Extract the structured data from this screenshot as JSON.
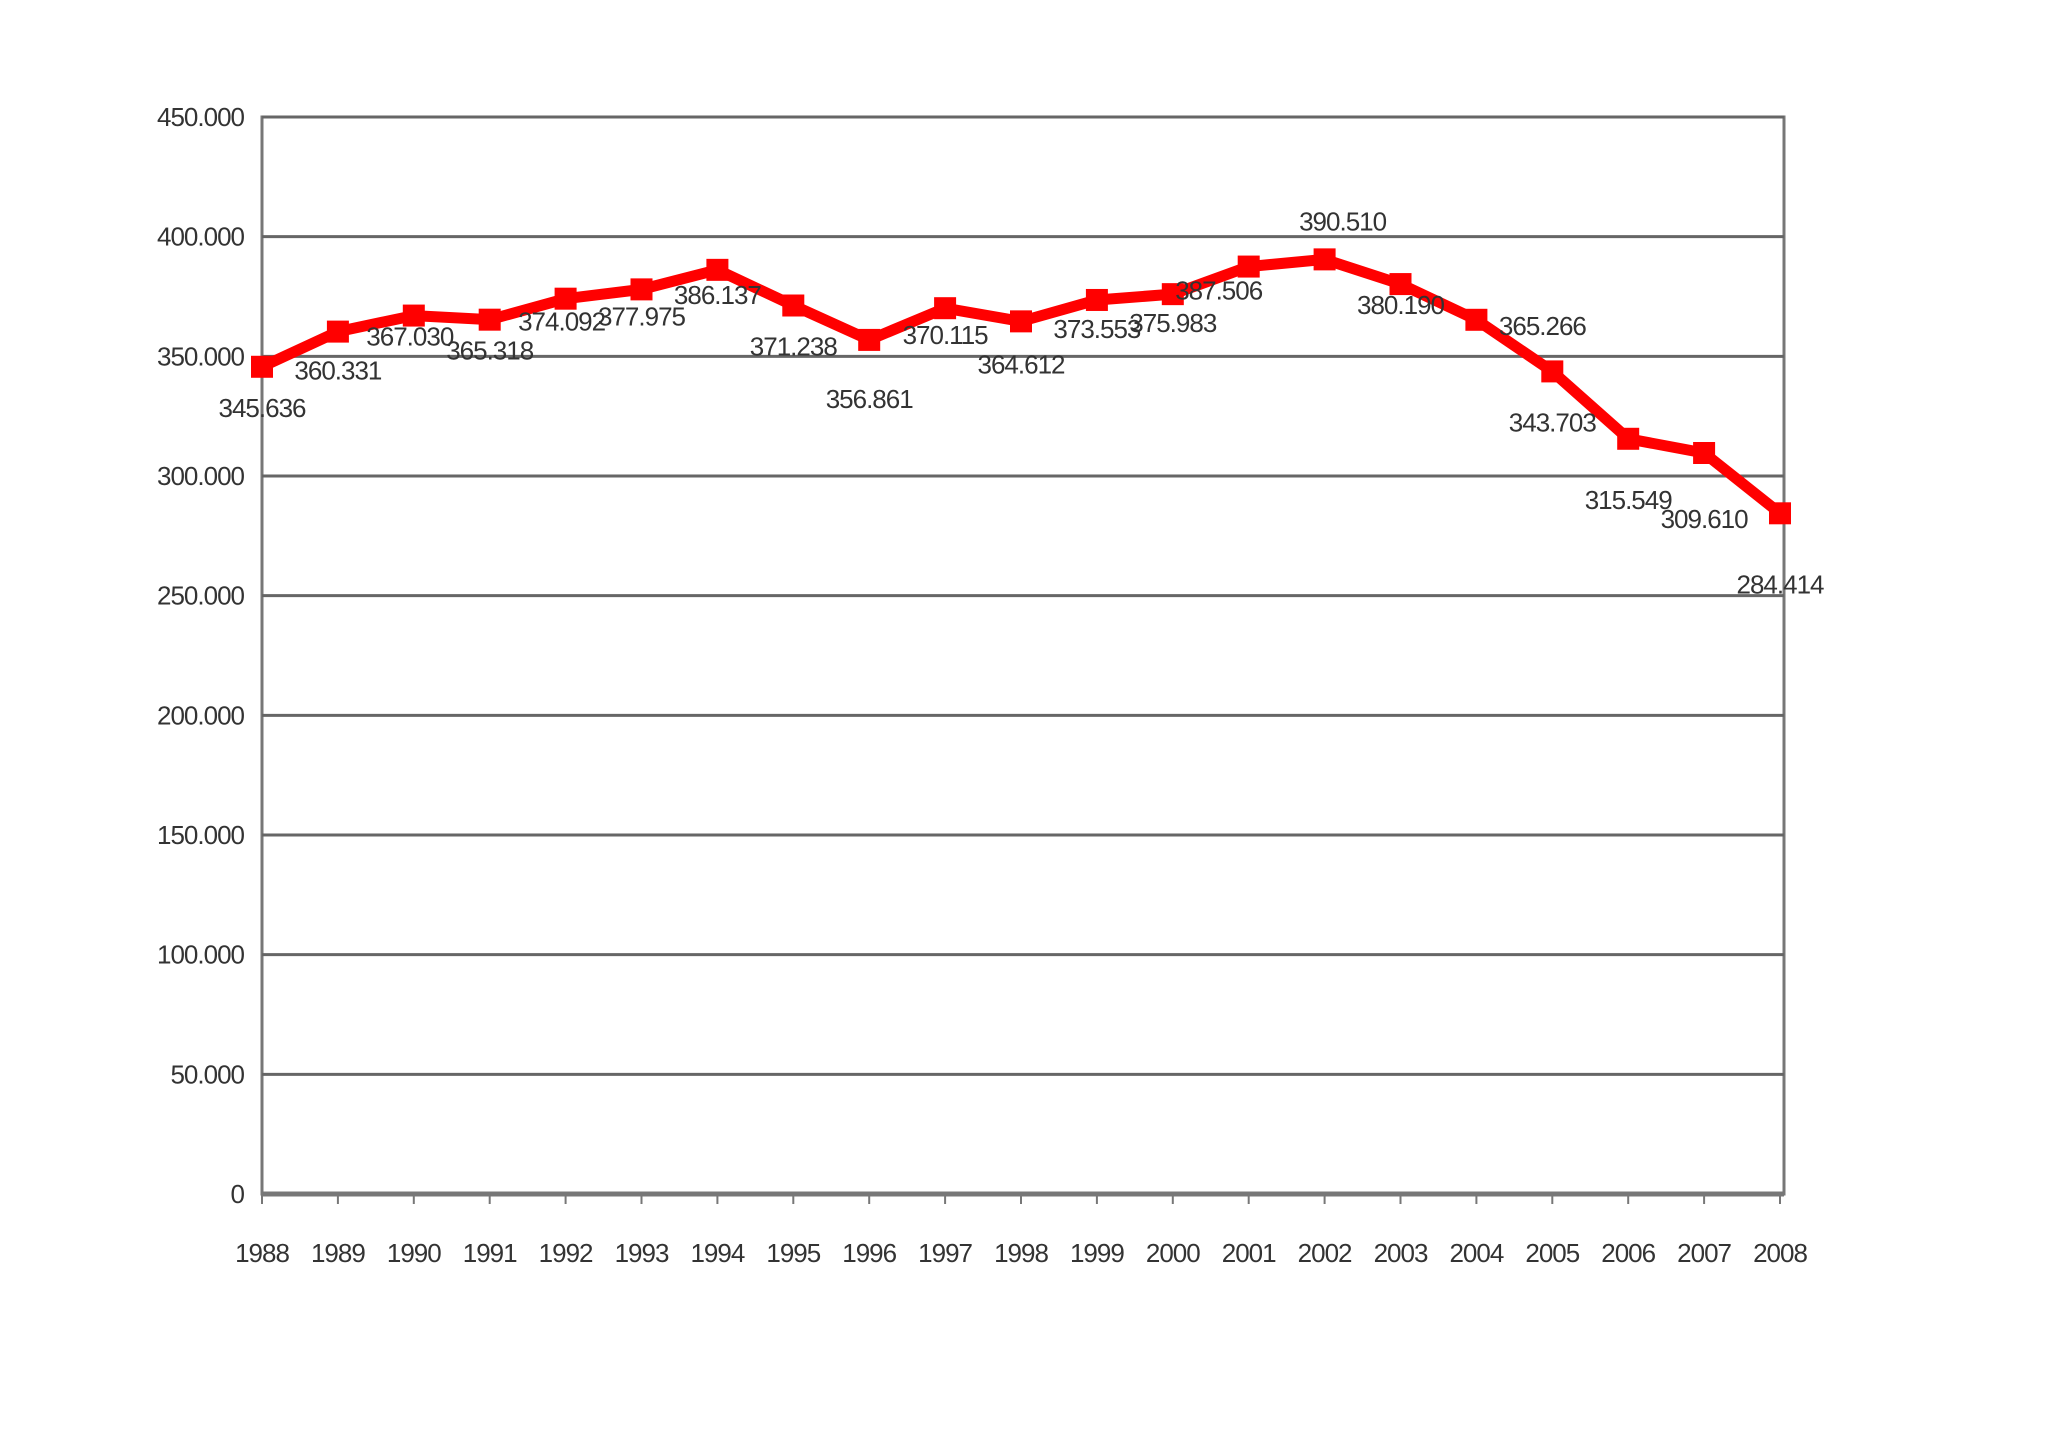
{
  "chart_data": {
    "type": "line",
    "title": "",
    "xlabel": "",
    "ylabel": "",
    "categories": [
      "1988",
      "1989",
      "1990",
      "1991",
      "1992",
      "1993",
      "1994",
      "1995",
      "1996",
      "1997",
      "1998",
      "1999",
      "2000",
      "2001",
      "2002",
      "2003",
      "2004",
      "2005",
      "2006",
      "2007",
      "2008"
    ],
    "series": [
      {
        "values": [
          345636,
          360331,
          367030,
          365318,
          374092,
          377975,
          386137,
          371238,
          356861,
          370115,
          364612,
          373553,
          375983,
          387506,
          390510,
          380190,
          365266,
          343703,
          315549,
          309610,
          284414
        ],
        "value_labels": [
          "345.636",
          "360.331",
          "367.030",
          "365.318",
          "374.092",
          "377.975",
          "386.137",
          "371.238",
          "356.861",
          "370.115",
          "364.612",
          "373.553",
          "375.983",
          "387.506",
          "390.510",
          "380.190",
          "365.266",
          "343.703",
          "315.549",
          "309.610",
          "284.414"
        ],
        "color": "#ff0000"
      }
    ],
    "ylim": [
      0,
      450000
    ],
    "yticks": [
      0,
      50000,
      100000,
      150000,
      200000,
      250000,
      300000,
      350000,
      400000,
      450000
    ],
    "ytick_labels": [
      "0",
      "50.000",
      "100.000",
      "150.000",
      "200.000",
      "250.000",
      "300.000",
      "350.000",
      "400.000",
      "450.000"
    ],
    "grid": true,
    "legend": "none"
  }
}
